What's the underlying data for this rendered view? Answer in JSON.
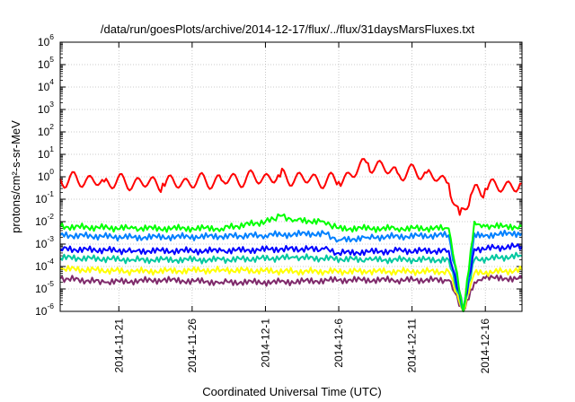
{
  "chart_data": {
    "type": "line",
    "title": "/data/run/goesPlots/archive/2014-12-17/flux/../flux/31daysMarsFluxes.txt",
    "xlabel": "Coordinated Universal Time (UTC)",
    "ylabel": "protons/cm²-s-sr-MeV",
    "y_scale": "log",
    "ylim": [
      1e-06,
      1000000.0
    ],
    "xlim": [
      "2014-11-17T00:00",
      "2014-12-18T12:00"
    ],
    "grid": true,
    "legend": "none",
    "x_ticks": [
      "2014-11-21",
      "2014-11-26",
      "2014-12-1",
      "2014-12-6",
      "2014-12-11",
      "2014-12-16"
    ],
    "y_ticks": [
      {
        "base": "10",
        "exp": "-6"
      },
      {
        "base": "10",
        "exp": "-5"
      },
      {
        "base": "10",
        "exp": "-4"
      },
      {
        "base": "10",
        "exp": "-3"
      },
      {
        "base": "10",
        "exp": "-2"
      },
      {
        "base": "10",
        "exp": "-1"
      },
      {
        "base": "10",
        "exp": "0"
      },
      {
        "base": "10",
        "exp": "1"
      },
      {
        "base": "10",
        "exp": "2"
      },
      {
        "base": "10",
        "exp": "3"
      },
      {
        "base": "10",
        "exp": "4"
      },
      {
        "base": "10",
        "exp": "5"
      },
      {
        "base": "10",
        "exp": "6"
      }
    ],
    "series": [
      {
        "color": "#7f2a6b",
        "x": [
          "2014-11-17T00:00",
          "2014-11-20T00:00",
          "2014-11-24T00:00",
          "2014-11-28T00:00",
          "2014-12-02T00:00",
          "2014-12-06T00:00",
          "2014-12-10T00:00",
          "2014-12-13T12:00",
          "2014-12-14T12:00",
          "2014-12-15T06:00",
          "2014-12-16T00:00",
          "2014-12-18T12:00"
        ],
        "y": [
          3e-05,
          2e-05,
          2.5e-05,
          2e-05,
          2e-05,
          2.5e-05,
          2.5e-05,
          2.5e-05,
          1e-06,
          2e-05,
          3e-05,
          3e-05
        ]
      },
      {
        "color": "#ffff00",
        "x": [
          "2014-11-17T00:00",
          "2014-11-22T00:00",
          "2014-11-28T00:00",
          "2014-12-03T00:00",
          "2014-12-08T00:00",
          "2014-12-13T12:00",
          "2014-12-14T12:00",
          "2014-12-15T06:00",
          "2014-12-18T12:00"
        ],
        "y": [
          8e-05,
          6e-05,
          7e-05,
          6e-05,
          6e-05,
          6e-05,
          1e-06,
          5e-05,
          7e-05
        ]
      },
      {
        "color": "#00c8a0",
        "x": [
          "2014-11-17T00:00",
          "2014-11-22T00:00",
          "2014-11-28T00:00",
          "2014-12-03T00:00",
          "2014-12-08T00:00",
          "2014-12-13T12:00",
          "2014-12-14T12:00",
          "2014-12-15T06:00",
          "2014-12-18T12:00"
        ],
        "y": [
          0.00025,
          0.0002,
          0.0002,
          0.00025,
          0.0002,
          0.0002,
          1e-06,
          0.0002,
          0.0003
        ]
      },
      {
        "color": "#0000ff",
        "x": [
          "2014-11-17T00:00",
          "2014-11-22T00:00",
          "2014-11-28T00:00",
          "2014-12-02T00:00",
          "2014-12-05T00:00",
          "2014-12-06T00:00",
          "2014-12-10T00:00",
          "2014-12-13T12:00",
          "2014-12-14T12:00",
          "2014-12-15T06:00",
          "2014-12-18T12:00"
        ],
        "y": [
          0.0006,
          0.0005,
          0.0005,
          0.0006,
          0.0006,
          0.0004,
          0.0005,
          0.0005,
          1e-06,
          0.0006,
          0.0008
        ]
      },
      {
        "color": "#0080ff",
        "x": [
          "2014-11-17T00:00",
          "2014-11-22T00:00",
          "2014-11-28T00:00",
          "2014-12-01T00:00",
          "2014-12-05T00:00",
          "2014-12-06T00:00",
          "2014-12-08T00:00",
          "2014-12-13T12:00",
          "2014-12-14T12:00",
          "2014-12-15T06:00",
          "2014-12-16T00:00",
          "2014-12-18T12:00"
        ],
        "y": [
          0.0025,
          0.002,
          0.0022,
          0.0025,
          0.003,
          0.0015,
          0.002,
          0.0025,
          1e-06,
          0.003,
          0.0025,
          0.003
        ]
      },
      {
        "color": "#00ff00",
        "x": [
          "2014-11-17T00:00",
          "2014-11-22T00:00",
          "2014-11-28T00:00",
          "2014-12-01T00:00",
          "2014-12-02T00:00",
          "2014-12-03T00:00",
          "2014-12-05T00:00",
          "2014-12-06T00:00",
          "2014-12-10T00:00",
          "2014-12-13T12:00",
          "2014-12-14T12:00",
          "2014-12-15T06:00",
          "2014-12-16T00:00",
          "2014-12-18T12:00"
        ],
        "y": [
          0.006,
          0.005,
          0.005,
          0.01,
          0.018,
          0.012,
          0.01,
          0.005,
          0.005,
          0.005,
          1e-06,
          0.01,
          0.006,
          0.006
        ]
      },
      {
        "color": "#ff0000",
        "x": [
          "2014-11-17T00:00",
          "2014-11-20T00:00",
          "2014-11-24T00:00",
          "2014-11-28T00:00",
          "2014-12-02T00:00",
          "2014-12-06T00:00",
          "2014-12-08T00:00",
          "2014-12-10T00:00",
          "2014-12-12T00:00",
          "2014-12-13T12:00",
          "2014-12-14T06:00",
          "2014-12-15T00:00",
          "2014-12-16T00:00",
          "2014-12-18T12:00"
        ],
        "y": [
          0.8,
          0.6,
          0.5,
          0.7,
          1.0,
          0.6,
          4,
          1.5,
          1.5,
          0.5,
          0.02,
          0.15,
          0.3,
          0.5
        ]
      }
    ]
  }
}
